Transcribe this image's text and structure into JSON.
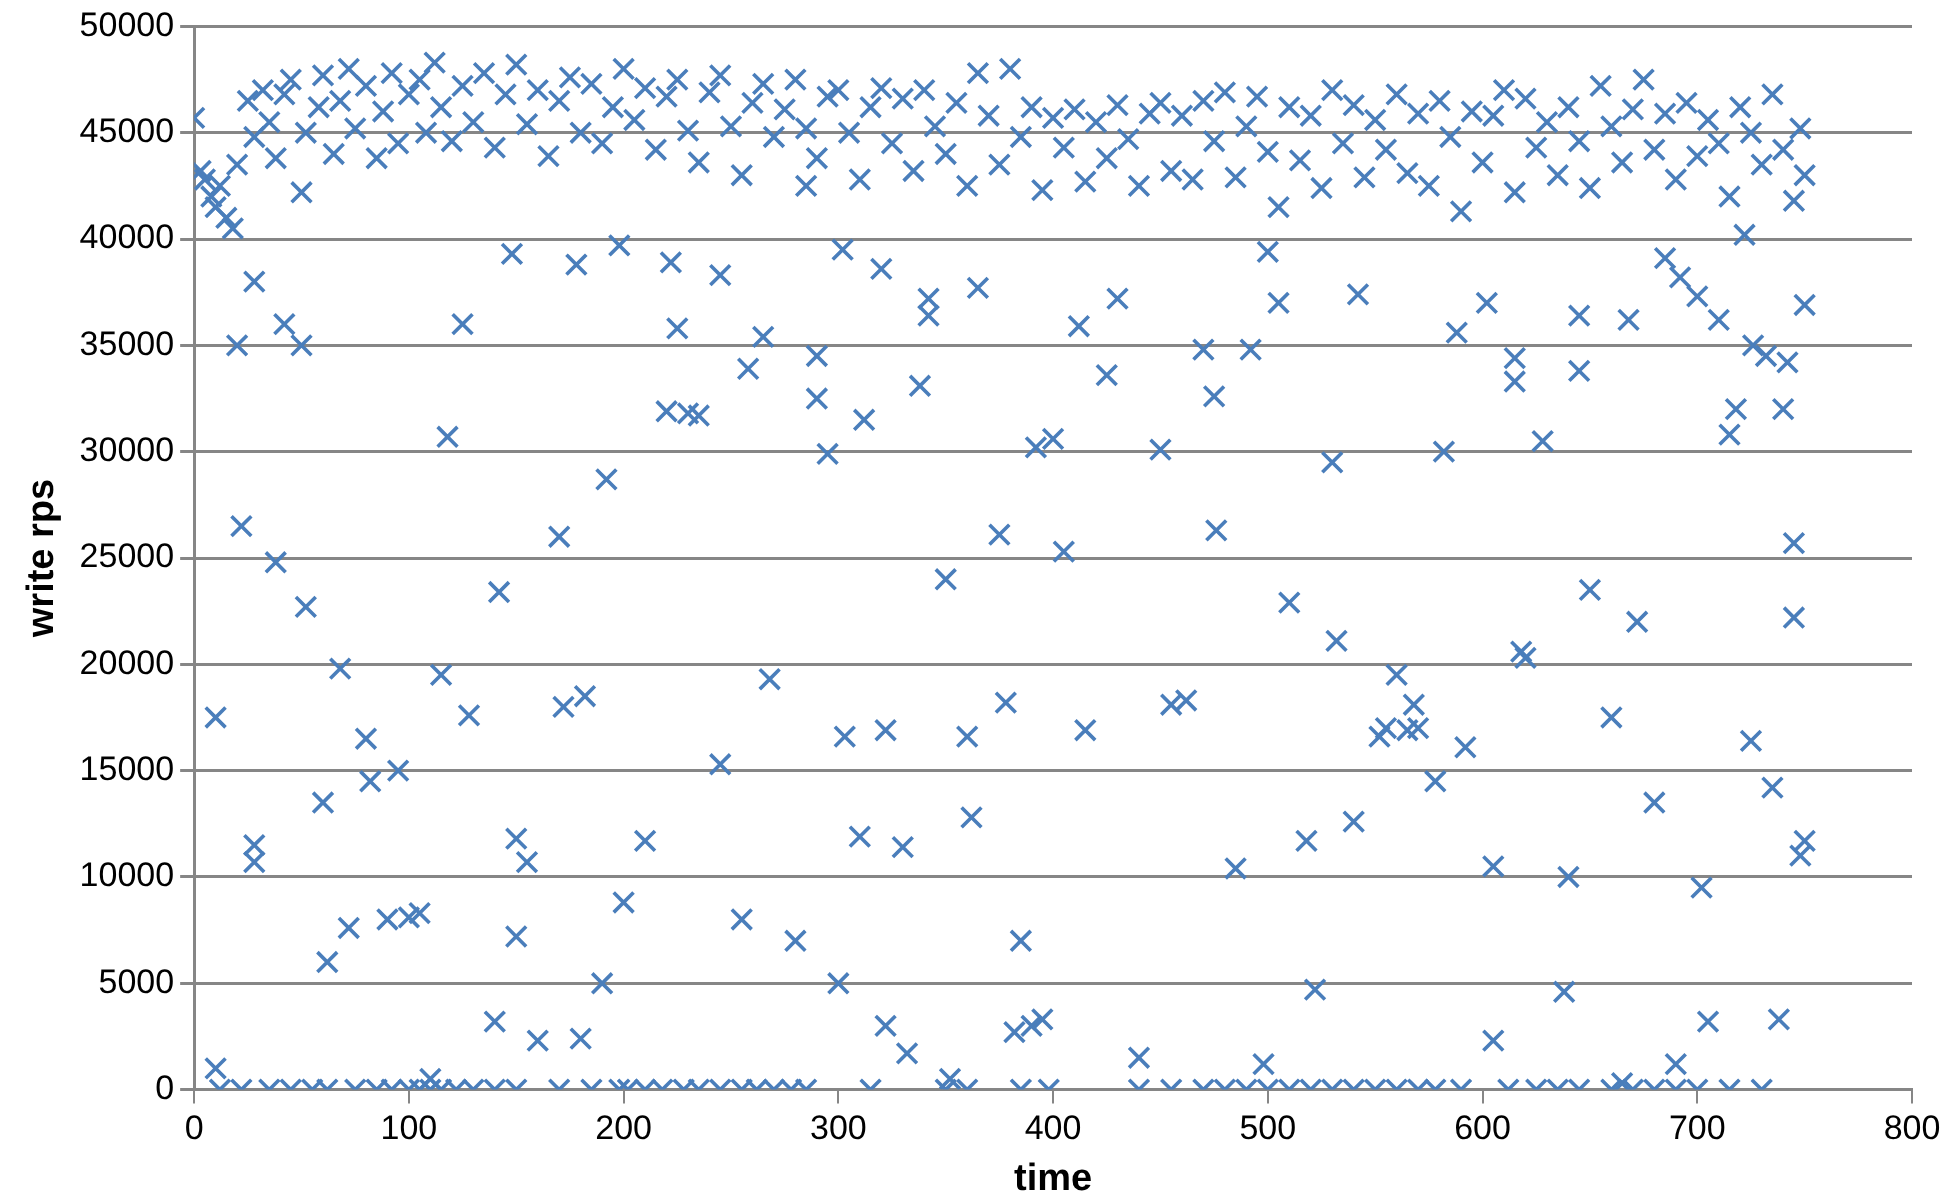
{
  "chart_data": {
    "type": "scatter",
    "xlabel": "time",
    "ylabel": "write rps",
    "xlim": [
      0,
      800
    ],
    "xticks": [
      0,
      100,
      200,
      300,
      400,
      500,
      600,
      700,
      800
    ],
    "ylim": [
      0,
      50000
    ],
    "yticks": [
      0,
      5000,
      10000,
      15000,
      20000,
      25000,
      30000,
      35000,
      40000,
      45000,
      50000
    ],
    "grid": "y",
    "legend": false,
    "marker": "cross",
    "series": [
      {
        "color": "#4a7ebb",
        "x": [
          0,
          3,
          5,
          8,
          10,
          12,
          15,
          18,
          20,
          25,
          28,
          32,
          35,
          38,
          42,
          45,
          50,
          52,
          58,
          60,
          65,
          68,
          72,
          75,
          80,
          85,
          88,
          92,
          95,
          100,
          105,
          108,
          112,
          115,
          120,
          125,
          130,
          135,
          140,
          145,
          150,
          155,
          160,
          165,
          170,
          175,
          180,
          185,
          190,
          195,
          200,
          205,
          210,
          215,
          220,
          225,
          230,
          235,
          240,
          245,
          250,
          255,
          260,
          265,
          270,
          275,
          280,
          285,
          290,
          295,
          300,
          305,
          310,
          315,
          320,
          325,
          330,
          335,
          340,
          345,
          350,
          355,
          360,
          365,
          370,
          375,
          380,
          385,
          390,
          395,
          400,
          405,
          410,
          415,
          420,
          425,
          430,
          435,
          440,
          445,
          450,
          455,
          460,
          465,
          470,
          475,
          480,
          485,
          490,
          495,
          500,
          505,
          510,
          515,
          520,
          525,
          530,
          535,
          540,
          545,
          550,
          555,
          560,
          565,
          570,
          575,
          580,
          585,
          590,
          595,
          600,
          605,
          610,
          615,
          620,
          625,
          630,
          635,
          640,
          645,
          650,
          655,
          660,
          665,
          670,
          675,
          680,
          685,
          690,
          695,
          700,
          705,
          710,
          715,
          720,
          725,
          730,
          735,
          740,
          745,
          748,
          750,
          10,
          10,
          22,
          20,
          28,
          28,
          28,
          38,
          42,
          50,
          52,
          60,
          62,
          68,
          72,
          80,
          82,
          90,
          95,
          100,
          105,
          110,
          115,
          118,
          125,
          128,
          140,
          142,
          148,
          150,
          150,
          155,
          160,
          170,
          172,
          178,
          180,
          182,
          190,
          192,
          198,
          200,
          210,
          220,
          222,
          225,
          230,
          235,
          245,
          245,
          255,
          258,
          265,
          268,
          280,
          285,
          290,
          290,
          295,
          300,
          302,
          303,
          310,
          312,
          320,
          322,
          322,
          330,
          332,
          338,
          342,
          342,
          350,
          352,
          360,
          362,
          365,
          375,
          378,
          382,
          385,
          390,
          392,
          395,
          400,
          405,
          412,
          415,
          425,
          430,
          440,
          450,
          455,
          462,
          470,
          475,
          476,
          485,
          492,
          498,
          500,
          505,
          510,
          518,
          522,
          530,
          532,
          540,
          542,
          552,
          555,
          560,
          565,
          568,
          570,
          578,
          582,
          588,
          592,
          602,
          605,
          605,
          615,
          615,
          618,
          620,
          628,
          638,
          640,
          645,
          645,
          650,
          660,
          665,
          668,
          672,
          680,
          685,
          690,
          692,
          700,
          702,
          705,
          710,
          715,
          718,
          722,
          725,
          726,
          732,
          735,
          738,
          740,
          742,
          745,
          745,
          748,
          750,
          750,
          12,
          22,
          35,
          45,
          55,
          62,
          75,
          85,
          92,
          100,
          105,
          110,
          115,
          122,
          130,
          140,
          150,
          170,
          185,
          198,
          202,
          210,
          218,
          228,
          235,
          245,
          255,
          262,
          270,
          278,
          285,
          315,
          350,
          360,
          385,
          398,
          440,
          455,
          470,
          480,
          490,
          500,
          510,
          520,
          530,
          540,
          550,
          560,
          570,
          578,
          590,
          612,
          625,
          635,
          645,
          660,
          670,
          680,
          690,
          700,
          715,
          730
        ],
        "values": [
          45700,
          43200,
          42800,
          42000,
          41500,
          42500,
          41000,
          40500,
          43500,
          46500,
          44800,
          47000,
          45500,
          43800,
          46800,
          47500,
          42200,
          45000,
          46200,
          47700,
          44000,
          46500,
          48000,
          45200,
          47200,
          43800,
          46000,
          47800,
          44500,
          46800,
          47500,
          45000,
          48300,
          46200,
          44600,
          47200,
          45500,
          47800,
          44300,
          46800,
          48200,
          45400,
          47000,
          43900,
          46500,
          47600,
          45000,
          47300,
          44500,
          46200,
          48000,
          45600,
          47100,
          44200,
          46700,
          47500,
          45100,
          43600,
          46900,
          47700,
          45300,
          43000,
          46400,
          47300,
          44800,
          46100,
          47500,
          45200,
          43800,
          46700,
          47000,
          45000,
          42800,
          46200,
          47100,
          44500,
          46600,
          43200,
          47000,
          45300,
          44000,
          46400,
          42500,
          47800,
          45800,
          43500,
          48000,
          44800,
          46200,
          42300,
          45700,
          44300,
          46100,
          42700,
          45500,
          43800,
          46300,
          44700,
          42500,
          45900,
          46400,
          43200,
          45800,
          42800,
          46500,
          44600,
          46900,
          42900,
          45300,
          46700,
          44100,
          41500,
          46200,
          43700,
          45800,
          42400,
          47000,
          44500,
          46300,
          42900,
          45600,
          44200,
          46800,
          43100,
          45900,
          42500,
          46500,
          44800,
          41300,
          46000,
          43600,
          45800,
          47000,
          42200,
          46600,
          44300,
          45500,
          43000,
          46200,
          44600,
          42400,
          47200,
          45300,
          43600,
          46100,
          47500,
          44200,
          45900,
          42800,
          46400,
          43900,
          45600,
          44500,
          42000,
          46200,
          45000,
          43500,
          46800,
          44200,
          41800,
          45200,
          43000,
          1000,
          17500,
          26500,
          35000,
          38000,
          11500,
          10700,
          24800,
          36000,
          35000,
          22700,
          13500,
          6000,
          19800,
          7600,
          16500,
          14500,
          8000,
          15000,
          8100,
          8300,
          500,
          19500,
          30700,
          36000,
          17600,
          3200,
          23400,
          39300,
          7200,
          11800,
          10700,
          2300,
          26000,
          18000,
          38800,
          2400,
          18500,
          5000,
          28700,
          39700,
          8800,
          11700,
          31900,
          38900,
          35800,
          31800,
          31700,
          38300,
          15300,
          8000,
          33900,
          35400,
          19300,
          7000,
          42500,
          34500,
          32500,
          29900,
          5000,
          39500,
          16600,
          11900,
          31500,
          38600,
          3000,
          16900,
          11400,
          1700,
          33100,
          37200,
          36400,
          24000,
          500,
          16600,
          12800,
          37700,
          26100,
          18200,
          2700,
          7000,
          3000,
          30200,
          3300,
          30600,
          25300,
          35900,
          16900,
          33600,
          37200,
          1500,
          30100,
          18100,
          18300,
          34800,
          32600,
          26300,
          10400,
          34800,
          1200,
          39400,
          37000,
          22900,
          11700,
          4700,
          29500,
          21100,
          12600,
          37400,
          16600,
          17000,
          19500,
          16900,
          18100,
          17000,
          14500,
          30000,
          35600,
          16100,
          37000,
          2300,
          10500,
          33300,
          34400,
          20600,
          20300,
          30500,
          4600,
          10000,
          33800,
          36400,
          23500,
          17500,
          300,
          36200,
          22000,
          13500,
          39100,
          1200,
          38200,
          37300,
          9500,
          3200,
          36200,
          30800,
          32000,
          40200,
          16400,
          35000,
          34500,
          14200,
          3300,
          32000,
          34200,
          22200,
          25700,
          11000,
          36900,
          11700,
          0,
          0,
          0,
          0,
          0,
          0,
          0,
          0,
          0,
          0,
          0,
          0,
          0,
          0,
          0,
          0,
          0,
          0,
          0,
          0,
          0,
          0,
          0,
          0,
          0,
          0,
          0,
          0,
          0,
          0,
          0,
          0,
          0,
          0,
          0,
          0,
          0,
          0,
          0,
          0,
          0,
          0,
          0,
          0,
          0,
          0,
          0,
          0,
          0,
          0,
          0,
          0,
          0,
          0,
          0,
          0,
          0,
          0,
          0,
          0,
          0,
          0
        ]
      }
    ]
  }
}
